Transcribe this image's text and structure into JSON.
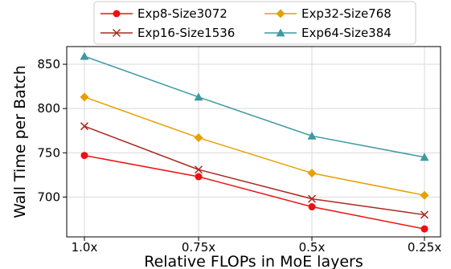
{
  "chart_data": {
    "type": "line",
    "categories": [
      "1.0x",
      "0.75x",
      "0.5x",
      "0.25x"
    ],
    "xlabel": "Relative FLOPs in MoE layers",
    "ylabel": "Wall Time per Batch",
    "ylim": [
      655,
      870
    ],
    "yticks": [
      700,
      750,
      800,
      850
    ],
    "grid": true,
    "legend_position": "top",
    "series": [
      {
        "name": "Exp8-Size3072",
        "color": "#ee1111",
        "marker": "circle",
        "values": [
          747,
          723,
          689,
          664
        ]
      },
      {
        "name": "Exp16-Size1536",
        "color": "#a82a22",
        "marker": "x",
        "values": [
          780,
          731,
          698,
          680
        ]
      },
      {
        "name": "Exp32-Size768",
        "color": "#e89f00",
        "marker": "diamond",
        "values": [
          813,
          767,
          727,
          702
        ]
      },
      {
        "name": "Exp64-Size384",
        "color": "#3d9aa0",
        "marker": "triangle",
        "values": [
          859,
          813,
          769,
          745
        ]
      }
    ]
  }
}
